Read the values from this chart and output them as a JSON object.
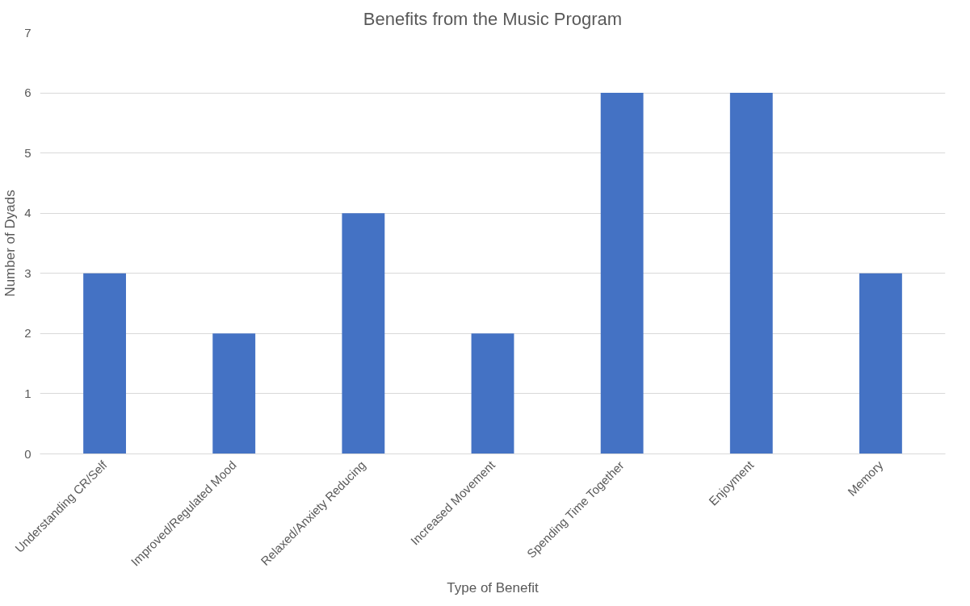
{
  "chart_data": {
    "type": "bar",
    "title": "Benefits from the Music Program",
    "xlabel": "Type of Benefit",
    "ylabel": "Number of Dyads",
    "categories": [
      "Understanding CR/Self",
      "Improved/Regulated Mood",
      "Relaxed/Anxiety Reducing",
      "Increased Movement",
      "Spending Time Together",
      "Enjoyment",
      "Memory"
    ],
    "values": [
      3,
      2,
      4,
      2,
      6,
      6,
      3
    ],
    "color": "#4472c4",
    "ylim": [
      0,
      7
    ],
    "yticks": [
      0,
      1,
      2,
      3,
      4,
      5,
      6,
      7
    ],
    "grid": "y"
  }
}
